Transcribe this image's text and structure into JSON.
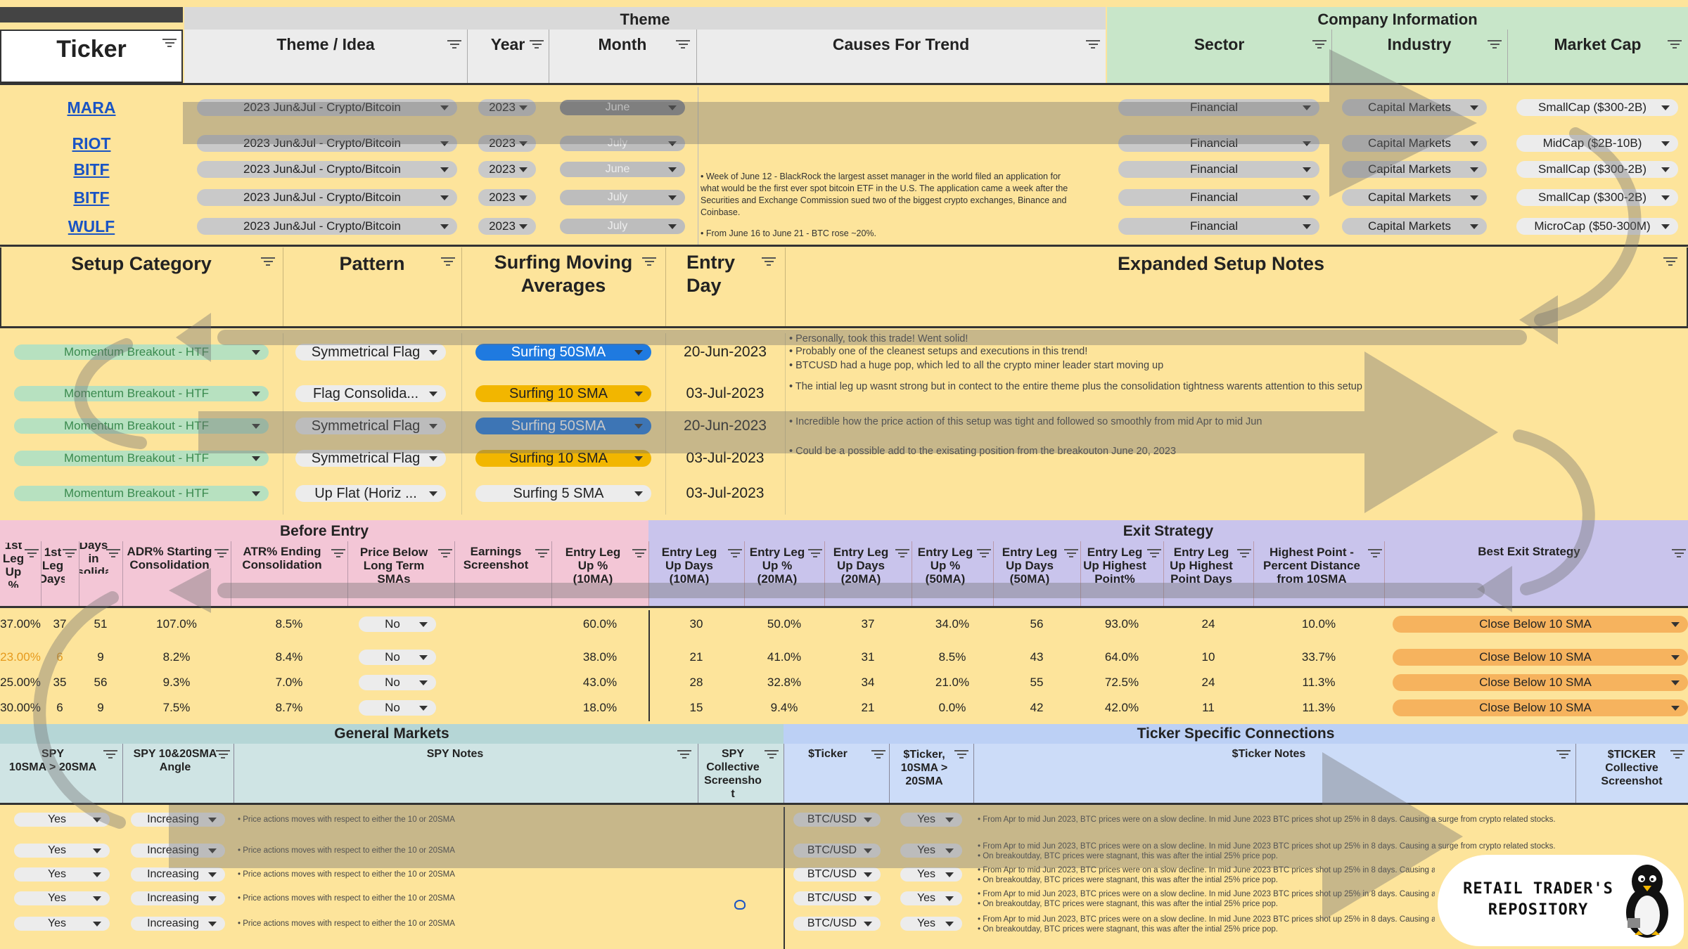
{
  "top": {
    "group_theme": "Theme",
    "group_company": "Company Information",
    "col_ticker": "Ticker",
    "col_theme_idea": "Theme / Idea",
    "col_year": "Year",
    "col_month": "Month",
    "col_causes": "Causes For Trend",
    "col_sector": "Sector",
    "col_industry": "Industry",
    "col_marketcap": "Market Cap"
  },
  "tickers": [
    {
      "ticker": "MARA",
      "theme": "2023 Jun&Jul - Crypto/Bitcoin",
      "year": "2023",
      "month": "June",
      "sector": "Financial",
      "industry": "Capital Markets",
      "marketcap": "SmallCap ($300-2B)"
    },
    {
      "ticker": "RIOT",
      "theme": "2023 Jun&Jul - Crypto/Bitcoin",
      "year": "2023",
      "month": "July",
      "sector": "Financial",
      "industry": "Capital Markets",
      "marketcap": "MidCap ($2B-10B)"
    },
    {
      "ticker": "BITF",
      "theme": "2023 Jun&Jul - Crypto/Bitcoin",
      "year": "2023",
      "month": "June",
      "sector": "Financial",
      "industry": "Capital Markets",
      "marketcap": "SmallCap ($300-2B)"
    },
    {
      "ticker": "BITF",
      "theme": "2023 Jun&Jul - Crypto/Bitcoin",
      "year": "2023",
      "month": "July",
      "sector": "Financial",
      "industry": "Capital Markets",
      "marketcap": "SmallCap ($300-2B)"
    },
    {
      "ticker": "WULF",
      "theme": "2023 Jun&Jul - Crypto/Bitcoin",
      "year": "2023",
      "month": "July",
      "sector": "Financial",
      "industry": "Capital Markets",
      "marketcap": "MicroCap ($50-300M)"
    }
  ],
  "causes": [
    "• Week of June 12 - BlackRock the largest asset manager in the world filed an application for",
    "what would be the first ever spot bitcoin ETF in the U.S. The application came a week after the",
    "Securities and Exchange Commission sued two of the biggest crypto exchanges, Binance and",
    "Coinbase.",
    "• From June 16 to June 21 - BTC rose ~20%."
  ],
  "setup": {
    "col_category": "Setup Category",
    "col_pattern": "Pattern",
    "col_surf_1": "Surfing Moving",
    "col_surf_2": "Averages",
    "col_entry_1": "Entry",
    "col_entry_2": "Day",
    "col_notes": "Expanded Setup Notes",
    "rows": [
      {
        "category": "Momentum Breakout - HTF",
        "pattern": "Symmetrical Flag",
        "surf": "Surfing 50SMA",
        "entry": "20-Jun-2023",
        "notes": [
          "• Personally, took this trade! Went solid!",
          "• Probably one of the cleanest setups and executions in this trend!",
          "• BTCUSD had a huge pop, which led to all the crypto miner leader start moving up"
        ]
      },
      {
        "category": "Momentum Breakout - HTF",
        "pattern": "Flag Consolida...",
        "surf": "Surfing 10 SMA",
        "entry": "03-Jul-2023",
        "notes": [
          "• The intial leg up wasnt strong but in contect to the entire theme plus the consolidation tightness warents attention to this setup"
        ]
      },
      {
        "category": "Momentum Breakout - HTF",
        "pattern": "Symmetrical Flag",
        "surf": "Surfing 50SMA",
        "entry": "20-Jun-2023",
        "notes": [
          "• Incredible how the price action of this setup was tight and followed so smoothly from mid Apr to mid Jun"
        ]
      },
      {
        "category": "Momentum Breakout - HTF",
        "pattern": "Symmetrical Flag",
        "surf": "Surfing 10 SMA",
        "entry": "03-Jul-2023",
        "notes": [
          "• Could be a possible add to the exisating position from the breakouton June 20, 2023"
        ]
      },
      {
        "category": "Momentum Breakout - HTF",
        "pattern": "Up Flat (Horiz ...",
        "surf": "Surfing 5 SMA",
        "entry": "03-Jul-2023",
        "notes": []
      }
    ]
  },
  "before": {
    "group_before": "Before Entry",
    "group_exit": "Exit Strategy",
    "headers": [
      [
        "1st",
        "Leg",
        "Up %"
      ],
      [
        "1st",
        "Leg",
        "Days"
      ],
      [
        "Days in",
        "Consolidation"
      ],
      [
        "ADR% Starting",
        "Consolidation"
      ],
      [
        "ATR% Ending",
        "Consolidation"
      ],
      [
        "Price Below",
        "Long Term",
        "SMAs"
      ],
      [
        "Earnings",
        "Screenshot"
      ],
      [
        "Entry Leg",
        "Up %",
        "(10MA)"
      ],
      [
        "Entry Leg",
        "Up Days",
        "(10MA)"
      ],
      [
        "Entry Leg",
        "Up %",
        "(20MA)"
      ],
      [
        "Entry Leg",
        "Up Days",
        "(20MA)"
      ],
      [
        "Entry Leg",
        "Up %",
        "(50MA)"
      ],
      [
        "Entry Leg",
        "Up Days",
        "(50MA)"
      ],
      [
        "Entry Leg",
        "Up Highest",
        "Point%"
      ],
      [
        "Entry Leg",
        "Up Highest",
        "Point Days"
      ],
      [
        "Highest Point -",
        "Percent Distance",
        "from 10SMA"
      ],
      [
        "Best Exit Strategy"
      ]
    ],
    "rows": [
      [
        "37.00%",
        "37",
        "51",
        "107.0%",
        "8.5%",
        "No",
        "",
        "60.0%",
        "30",
        "50.0%",
        "37",
        "34.0%",
        "56",
        "93.0%",
        "24",
        "10.0%",
        "Close Below 10 SMA"
      ],
      [
        "23.00%",
        "6",
        "9",
        "8.2%",
        "8.4%",
        "No",
        "",
        "38.0%",
        "21",
        "41.0%",
        "31",
        "8.5%",
        "43",
        "64.0%",
        "10",
        "33.7%",
        "Close Below 10 SMA"
      ],
      [
        "25.00%",
        "35",
        "56",
        "9.3%",
        "7.0%",
        "No",
        "",
        "43.0%",
        "28",
        "32.8%",
        "34",
        "21.0%",
        "55",
        "72.5%",
        "24",
        "11.3%",
        "Close Below 10 SMA"
      ],
      [
        "30.00%",
        "6",
        "9",
        "7.5%",
        "8.7%",
        "No",
        "",
        "18.0%",
        "15",
        "9.4%",
        "21",
        "0.0%",
        "42",
        "42.0%",
        "11",
        "11.3%",
        "Close Below 10 SMA"
      ]
    ]
  },
  "markets": {
    "group_general": "General Markets",
    "group_ticker": "Ticker Specific Connections",
    "col_spy": [
      "SPY",
      "10SMA > 20SMA"
    ],
    "col_spy_angle": [
      "SPY 10&20SMA",
      "Angle"
    ],
    "col_spy_notes": "SPY Notes",
    "col_spy_shot": [
      "SPY",
      "Collective",
      "Screensho",
      "t"
    ],
    "col_ticker": "$Ticker",
    "col_ticker_sma": [
      "$Ticker,",
      "10SMA >",
      "20SMA"
    ],
    "col_ticker_notes": "$Ticker Notes",
    "col_ticker_shot": [
      "$TICKER",
      "Collective",
      "Screenshot"
    ],
    "rows": [
      {
        "spy": "Yes",
        "angle": "Increasing",
        "spy_note": "• Price actions moves with respect to either the 10 or 20SMA",
        "tk": "BTC/USD",
        "tk_sma": "Yes",
        "tk_notes": [
          "• From Apr to mid Jun 2023, BTC prices were on a slow decline. In mid June 2023 BTC prices shot up 25% in 8 days. Causing a surge from crypto related stocks."
        ]
      },
      {
        "spy": "Yes",
        "angle": "Increasing",
        "spy_note": "• Price actions moves with respect to either the 10 or 20SMA",
        "tk": "BTC/USD",
        "tk_sma": "Yes",
        "tk_notes": [
          "• From Apr to mid Jun 2023, BTC prices were on a slow decline. In mid June 2023 BTC prices shot up 25% in 8 days. Causing a surge from crypto related stocks.",
          "• On breakoutday, BTC prices were stagnant, this was after the intial 25% price pop."
        ]
      },
      {
        "spy": "Yes",
        "angle": "Increasing",
        "spy_note": "• Price actions moves with respect to either the 10 or 20SMA",
        "tk": "BTC/USD",
        "tk_sma": "Yes",
        "tk_notes": [
          "• From Apr to mid Jun 2023, BTC prices were on a slow decline. In mid June 2023 BTC prices shot up 25% in 8 days. Causing a",
          "• On breakoutday, BTC prices were stagnant, this was after the intial 25% price pop."
        ]
      },
      {
        "spy": "Yes",
        "angle": "Increasing",
        "spy_note": "• Price actions moves with respect to either the 10 or 20SMA",
        "tk": "BTC/USD",
        "tk_sma": "Yes",
        "tk_notes": [
          "• From Apr to mid Jun 2023, BTC prices were on a slow decline. In mid June 2023 BTC prices shot up 25% in 8 days. Causing a",
          "• On breakoutday, BTC prices were stagnant, this was after the intial 25% price pop."
        ]
      },
      {
        "spy": "Yes",
        "angle": "Increasing",
        "spy_note": "• Price actions moves with respect to either the 10 or 20SMA",
        "tk": "BTC/USD",
        "tk_sma": "Yes",
        "tk_notes": [
          "• From Apr to mid Jun 2023, BTC prices were on a slow decline. In mid June 2023 BTC prices shot up 25% in 8 days. Causing a",
          "• On breakoutday, BTC prices were stagnant, this was after the intial 25% price pop."
        ]
      }
    ]
  },
  "logo": {
    "line1": "RETAIL TRADER'S",
    "line2": "REPOSITORY"
  },
  "colors": {
    "yellow": "#fde49b",
    "header_gray": "#ececec",
    "theme_gray": "#d9d9d9",
    "company_green": "#c8e6c9",
    "chip_gray": "#c9c9c9",
    "surf_blue": "#1f7ae0",
    "surf_yellow": "#f2b600",
    "momentum_green": "#b7e1c0",
    "before_pink": "#f3c6d6",
    "exit_purple": "#c9c4ec",
    "markets_teal": "#b5d6d6",
    "ticker_blue": "#bcd0f5",
    "exit_orange": "#f6b35e"
  }
}
